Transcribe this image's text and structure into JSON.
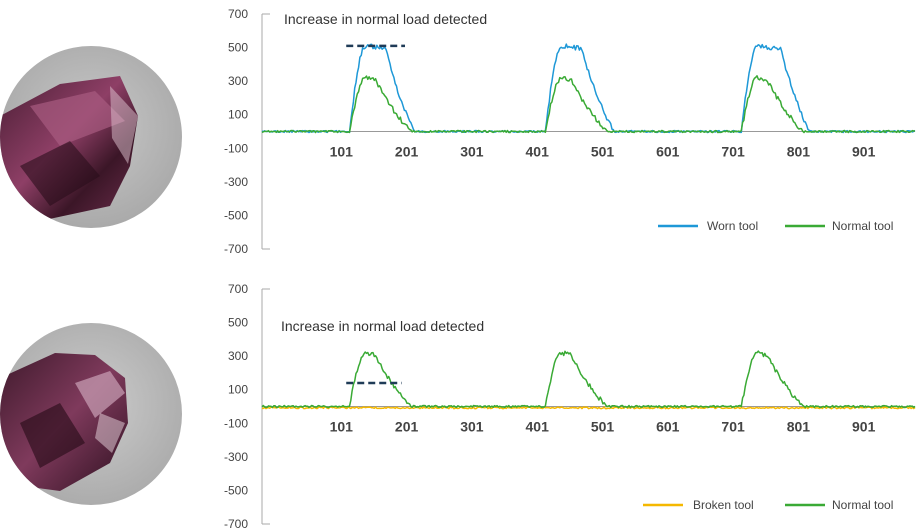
{
  "colors": {
    "worn": "#1e98d7",
    "normal": "#3aaa35",
    "broken": "#f5b800",
    "axis": "#aaaaaa",
    "baseline": "#999999",
    "dash": "#1f3b57",
    "text": "#444444"
  },
  "photos": [
    {
      "name": "worn-drill-photo",
      "icon": "worn-drill-bit-photo"
    },
    {
      "name": "broken-drill-photo",
      "icon": "broken-drill-bit-photo"
    }
  ],
  "chart_data": [
    {
      "type": "line",
      "annotation": "Increase in normal load detected",
      "ylim": [
        -700,
        700
      ],
      "yticks": [
        700,
        500,
        300,
        100,
        -100,
        -300,
        -500,
        -700
      ],
      "xlim": [
        1,
        1001
      ],
      "xticks": [
        101,
        201,
        301,
        401,
        501,
        601,
        701,
        801,
        901
      ],
      "threshold": {
        "value": 510,
        "x_start": 130,
        "x_end": 220
      },
      "legend_position": "bottom-right",
      "series": [
        {
          "name": "Worn tool",
          "color": "#1e98d7",
          "peaks": [
            {
              "start": 135,
              "rise_end": 160,
              "peak_end": 190,
              "end": 235,
              "peak": 510
            },
            {
              "start": 435,
              "rise_end": 460,
              "peak_end": 490,
              "end": 540,
              "peak": 510
            },
            {
              "start": 735,
              "rise_end": 760,
              "peak_end": 795,
              "end": 840,
              "peak": 510
            }
          ]
        },
        {
          "name": "Normal tool",
          "color": "#3aaa35",
          "peaks": [
            {
              "start": 135,
              "rise_end": 160,
              "peak_end": 175,
              "end": 230,
              "peak": 320
            },
            {
              "start": 435,
              "rise_end": 460,
              "peak_end": 475,
              "end": 530,
              "peak": 320
            },
            {
              "start": 735,
              "rise_end": 760,
              "peak_end": 775,
              "end": 830,
              "peak": 320
            }
          ]
        }
      ]
    },
    {
      "type": "line",
      "annotation": "Increase in normal load detected",
      "ylim": [
        -700,
        700
      ],
      "yticks": [
        700,
        500,
        300,
        100,
        -100,
        -300,
        -500,
        -700
      ],
      "xlim": [
        1,
        1001
      ],
      "xticks": [
        101,
        201,
        301,
        401,
        501,
        601,
        701,
        801,
        901
      ],
      "threshold": {
        "value": 140,
        "x_start": 130,
        "x_end": 215
      },
      "legend_position": "bottom-right",
      "series": [
        {
          "name": "Broken tool",
          "color": "#f5b800",
          "peaks": []
        },
        {
          "name": "Normal tool",
          "color": "#3aaa35",
          "peaks": [
            {
              "start": 135,
              "rise_end": 160,
              "peak_end": 175,
              "end": 230,
              "peak": 320
            },
            {
              "start": 435,
              "rise_end": 460,
              "peak_end": 475,
              "end": 530,
              "peak": 320
            },
            {
              "start": 735,
              "rise_end": 760,
              "peak_end": 775,
              "end": 830,
              "peak": 320
            }
          ]
        }
      ]
    }
  ]
}
